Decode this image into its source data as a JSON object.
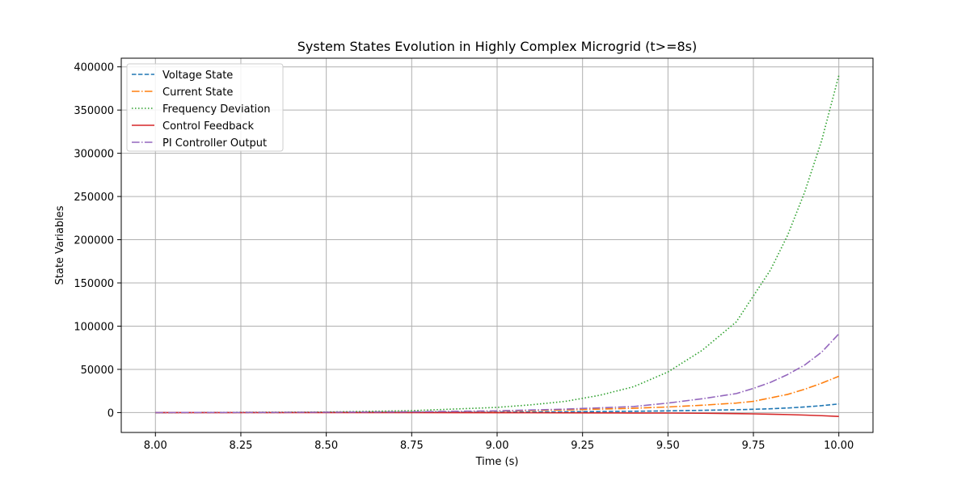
{
  "chart_data": {
    "type": "line",
    "title": "System States Evolution in Highly Complex Microgrid (t>=8s)",
    "xlabel": "Time (s)",
    "ylabel": "State Variables",
    "xlim": [
      7.9,
      10.1
    ],
    "ylim": [
      -23000,
      410000
    ],
    "xticks": [
      8.0,
      8.25,
      8.5,
      8.75,
      9.0,
      9.25,
      9.5,
      9.75,
      10.0
    ],
    "xtick_labels": [
      "8.00",
      "8.25",
      "8.50",
      "8.75",
      "9.00",
      "9.25",
      "9.50",
      "9.75",
      "10.00"
    ],
    "yticks": [
      0,
      50000,
      100000,
      150000,
      200000,
      250000,
      300000,
      350000,
      400000
    ],
    "ytick_labels": [
      "0",
      "50000",
      "100000",
      "150000",
      "200000",
      "250000",
      "300000",
      "350000",
      "400000"
    ],
    "grid": true,
    "legend_position": "upper-left",
    "x": [
      8.0,
      8.25,
      8.5,
      8.75,
      9.0,
      9.1,
      9.2,
      9.3,
      9.4,
      9.5,
      9.6,
      9.7,
      9.75,
      9.8,
      9.85,
      9.9,
      9.95,
      10.0
    ],
    "series": [
      {
        "name": "Voltage State",
        "color": "#1f77b4",
        "dash": "dashed",
        "values": [
          0,
          80,
          180,
          400,
          500,
          700,
          900,
          1200,
          1500,
          2000,
          2600,
          3300,
          3800,
          4400,
          5300,
          6500,
          8000,
          10000
        ]
      },
      {
        "name": "Current State",
        "color": "#ff7f0e",
        "dash": "dashdot",
        "values": [
          0,
          150,
          400,
          900,
          1700,
          2300,
          3100,
          4000,
          5000,
          6500,
          8500,
          11000,
          13000,
          17000,
          21000,
          27000,
          34000,
          42000
        ]
      },
      {
        "name": "Frequency Deviation",
        "color": "#2ca02c",
        "dash": "dotted",
        "values": [
          0,
          300,
          700,
          2200,
          6000,
          9000,
          13000,
          20000,
          30000,
          47000,
          72000,
          105000,
          135000,
          165000,
          205000,
          255000,
          315000,
          390000
        ]
      },
      {
        "name": "Control Feedback",
        "color": "#d62728",
        "dash": "solid",
        "values": [
          0,
          -20,
          -50,
          -80,
          -150,
          -200,
          -280,
          -350,
          -450,
          -550,
          -800,
          -1200,
          -1500,
          -1900,
          -2300,
          -2900,
          -3600,
          -4500
        ]
      },
      {
        "name": "PI Controller Output",
        "color": "#9467bd",
        "dash": "dashdot",
        "values": [
          0,
          150,
          400,
          900,
          2000,
          3000,
          4000,
          5500,
          7000,
          11000,
          16000,
          22000,
          28000,
          35000,
          44000,
          55000,
          70000,
          91000
        ]
      }
    ]
  }
}
